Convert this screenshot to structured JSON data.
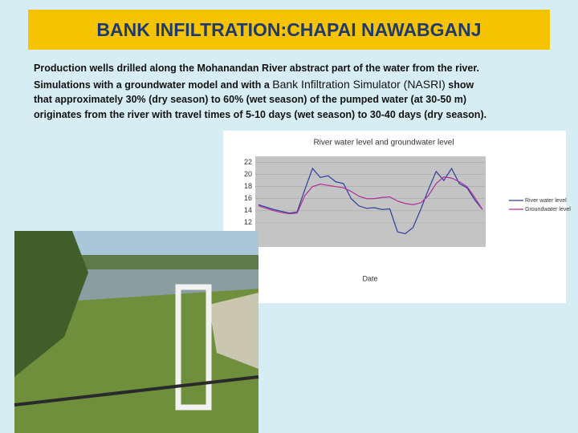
{
  "header": {
    "title": "BANK INFILTRATION:CHAPAI NAWABGANJ"
  },
  "body": {
    "lines": [
      [
        "Production wells drilled along the Mohanandan River abstract part of the water from the river."
      ],
      [
        "Simulations with a  groundwater model and with a ",
        "Bank Infiltration Simulator (NASRI)",
        " show"
      ],
      [
        "that approximately 30% (dry season) to 60% (wet season)  of the pumped water  (at 30-50 m)"
      ],
      [
        "originates from the river  with travel times of 5-10 days (wet season) to 30-40 days (dry season)."
      ]
    ]
  },
  "chart_data": {
    "type": "line",
    "title": "River water level  and groundwater level",
    "x_label": "Date",
    "categories": [
      null,
      null,
      null,
      null,
      null,
      null,
      null,
      null,
      null,
      null,
      null,
      null,
      null,
      null,
      null,
      null,
      null,
      null,
      null,
      null,
      null,
      null,
      null,
      null,
      null,
      null,
      null,
      null,
      null,
      null
    ],
    "series": [
      {
        "name": "River water level",
        "color": "#2a3f9a",
        "values": [
          15,
          14.6,
          14.2,
          13.9,
          13.6,
          13.8,
          17.5,
          21,
          19.5,
          19.8,
          18.8,
          18.5,
          16,
          14.8,
          14.4,
          14.5,
          14.2,
          14.3,
          10.5,
          10.2,
          11.2,
          14.2,
          17.5,
          20.5,
          19,
          21,
          18.5,
          17.8,
          15.8,
          14.2
        ]
      },
      {
        "name": "Groundwater level",
        "color": "#b0309a",
        "values": [
          14.8,
          14.4,
          14,
          13.7,
          13.5,
          13.6,
          16.5,
          18,
          18.4,
          18.2,
          18,
          17.8,
          17.2,
          16.4,
          16,
          16,
          16.2,
          16.3,
          15.6,
          15.2,
          15,
          15.3,
          16.5,
          18.5,
          19.6,
          19.4,
          18.8,
          18,
          16.2,
          14.2
        ]
      }
    ],
    "ylim": [
      8,
      23
    ],
    "yticks": [
      12,
      14,
      16,
      18,
      20,
      22
    ],
    "grid": true,
    "legend": "right"
  }
}
